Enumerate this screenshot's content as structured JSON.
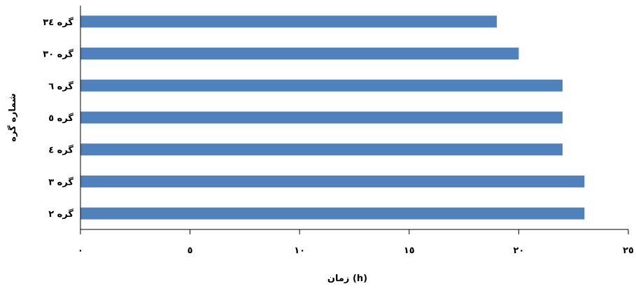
{
  "chart_data": {
    "type": "bar",
    "orientation": "horizontal",
    "categories": [
      "گره ۳٤",
      "گره ۳۰",
      "گره ٦",
      "گره ٥",
      "گره ٤",
      "گره ۳",
      "گره ۲"
    ],
    "values": [
      19,
      20,
      22,
      22,
      22,
      23,
      23
    ],
    "xlabel": "زمان (h)",
    "ylabel": "شماره گره",
    "xlim": [
      0,
      25
    ],
    "xticks": [
      0,
      5,
      10,
      15,
      20,
      25
    ],
    "xtick_labels": [
      "۰",
      "٥",
      "۱۰",
      "۱٥",
      "۲۰",
      "۲٥"
    ],
    "bar_color": "#4F81BD",
    "grid": false,
    "legend": "none"
  }
}
